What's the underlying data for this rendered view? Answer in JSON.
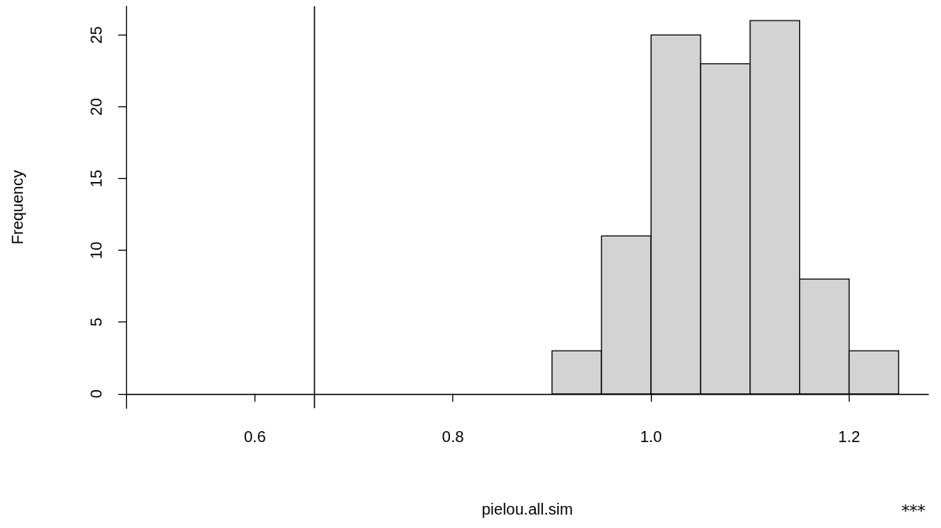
{
  "chart_data": {
    "type": "histogram",
    "bins": [
      0.9,
      0.95,
      1.0,
      1.05,
      1.1,
      1.15,
      1.2,
      1.25
    ],
    "values": [
      3,
      11,
      25,
      23,
      26,
      8,
      3
    ],
    "color": "#d3d3d3",
    "xlabel": "pielou.all.sim",
    "ylabel": "Frequency",
    "xlim": [
      0.47,
      1.28
    ],
    "xticks": [
      {
        "value": 0.6,
        "label": "0.6"
      },
      {
        "value": 0.8,
        "label": "0.8"
      },
      {
        "value": 1.0,
        "label": "1.0"
      },
      {
        "value": 1.2,
        "label": "1.2"
      }
    ],
    "ylim": [
      -1,
      27
    ],
    "yticks": [
      0,
      5,
      10,
      15,
      20,
      25
    ],
    "ref_lines": [
      {
        "axis": "x",
        "value": 0.657,
        "color": "#000000",
        "line_style": "solid"
      }
    ],
    "annotations": [
      "***"
    ],
    "grid": false
  }
}
